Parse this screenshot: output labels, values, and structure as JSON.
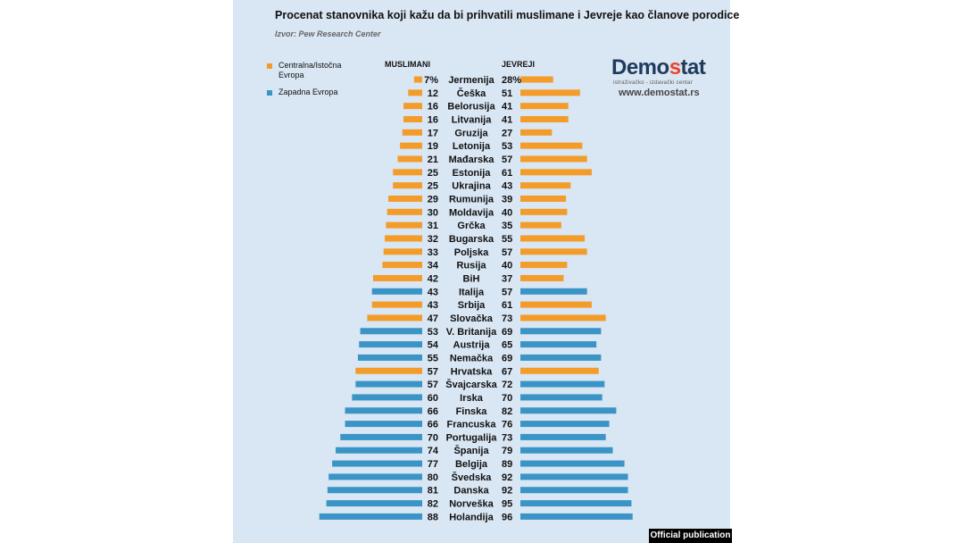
{
  "header": {
    "title": "Procenat stanovnika koji kažu da bi prihvatili muslimane i Jevreje kao članove porodice",
    "source": "Izvor: Pew Research Center"
  },
  "legend": [
    {
      "label": "Centralna/Istočna Evropa",
      "color": "#f39c2a"
    },
    {
      "label": "Zapadna Evropa",
      "color": "#3a95c6"
    }
  ],
  "logo": {
    "text_main": "Demo",
    "text_accent": "s",
    "text_end": "tat",
    "tagline": "istraživačko - izdavački  centar",
    "url": "www.demostat.rs"
  },
  "badge": "Official publication",
  "chart_data": {
    "type": "bar",
    "left_label": "MUSLIMANI",
    "right_label": "JEVREJI",
    "categories": [
      "Jermenija",
      "Češka",
      "Belorusija",
      "Litvanija",
      "Gruzija",
      "Letonija",
      "Mađarska",
      "Estonija",
      "Ukrajina",
      "Rumunija",
      "Moldavija",
      "Grčka",
      "Bugarska",
      "Poljska",
      "Rusija",
      "BiH",
      "Italija",
      "Srbija",
      "Slovačka",
      "V. Britanija",
      "Austrija",
      "Nemačka",
      "Hrvatska",
      "Švajcarska",
      "Irska",
      "Finska",
      "Francuska",
      "Portugalija",
      "Španija",
      "Belgija",
      "Švedska",
      "Danska",
      "Norveška",
      "Holandija"
    ],
    "region": [
      "CE",
      "CE",
      "CE",
      "CE",
      "CE",
      "CE",
      "CE",
      "CE",
      "CE",
      "CE",
      "CE",
      "CE",
      "CE",
      "CE",
      "CE",
      "CE",
      "WE",
      "CE",
      "CE",
      "WE",
      "WE",
      "WE",
      "CE",
      "WE",
      "WE",
      "WE",
      "WE",
      "WE",
      "WE",
      "WE",
      "WE",
      "WE",
      "WE",
      "WE"
    ],
    "series": [
      {
        "name": "MUSLIMANI",
        "values": [
          7,
          12,
          16,
          16,
          17,
          19,
          21,
          25,
          25,
          29,
          30,
          31,
          32,
          33,
          34,
          42,
          43,
          43,
          47,
          53,
          54,
          55,
          57,
          57,
          60,
          66,
          66,
          70,
          74,
          77,
          80,
          81,
          82,
          88
        ]
      },
      {
        "name": "JEVREJI",
        "values": [
          28,
          51,
          41,
          41,
          27,
          53,
          57,
          61,
          43,
          39,
          40,
          35,
          55,
          57,
          40,
          37,
          57,
          61,
          73,
          69,
          65,
          69,
          67,
          72,
          70,
          82,
          76,
          73,
          79,
          89,
          92,
          92,
          95,
          96
        ]
      }
    ],
    "first_label_suffix": "%",
    "colors": {
      "CE": "#f39c2a",
      "WE": "#3a95c6"
    }
  }
}
